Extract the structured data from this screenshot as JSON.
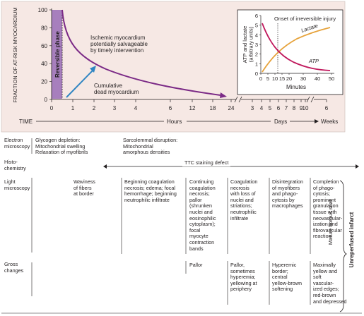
{
  "chart": {
    "ylabel": "FRACTION OF AT-RISK MYOCARDIUM",
    "yticks": [
      "100",
      "80",
      "60",
      "40",
      "20",
      "0"
    ],
    "xticks_hours": [
      "0",
      "1",
      "2",
      "3",
      "4",
      "6",
      "12",
      "18",
      "24"
    ],
    "xticks_days": [
      "3",
      "4",
      "5",
      "6",
      "7",
      "8",
      "9",
      "10"
    ],
    "xtick_weeks": "6",
    "time_label": "TIME",
    "hours_label": "Hours",
    "days_label": "Days",
    "weeks_label": "Weeks",
    "reversible_phase": "Reversible phase",
    "ischemic_label": "Ischemic myocardium\npotentially salvageable\nby timely intervention",
    "dead_label": "Cumulative\ndead myocardium",
    "colors": {
      "background": "#f6e8e4",
      "reversible": "#a77fbd",
      "ischemic_curve": "#7b2a86",
      "dead_arrow": "#2f85c2",
      "atp": "#c0185c",
      "lactate": "#e6a23a"
    }
  },
  "inset": {
    "title": "Onset of irreversible injury",
    "ylabel": "ATP and lactate\n(arbitrary units)",
    "xlabel": "Minutes",
    "yticks": [
      "6",
      "5",
      "4",
      "3",
      "2",
      "1",
      "0"
    ],
    "xticks": [
      "0",
      "5",
      "10",
      "15",
      "20",
      "30",
      "40",
      "50"
    ],
    "lactate_label": "Lactate",
    "atp_label": "ATP"
  },
  "timeline": {
    "rows": {
      "em": "Electron\nmicroscopy",
      "histo": "Histo-\nchemistry",
      "lm": "Light\nmicroscopy",
      "gross": "Gross\nchanges"
    },
    "em_glycogen": "Glycogen depletion:\n  Mitochondrial swelling\n  Relaxation of myofibrils",
    "em_sarcolemmal": "Sarcolemmal disruption:\n  Mitochondrial\n  amorphous densities",
    "ttc": "TTC staining defect",
    "lm_cells": [
      "Waviness\nof fibers\nat border",
      "Beginning coagulation\nnecrosis; edema; focal\nhemorrhage; beginning\nneutrophilic infiltrate",
      "Continuing\ncoagulation\nnecrosis;\npallor\n(shrunken\nnuclei and\neosinophilic\ncytoplasm);\nfocal\nmyocyte\ncontraction\nbands",
      "Coagulation\nnecrosis\nwith loss of\nnuclei and\nstriations;\nneutrophilic\ninfiltrate",
      "Disintegration\nof myofibers\nand phago-\ncytosis by\nmacrophages",
      "Completion\nof phago-\ncytosis;\nprominent\ngranulation\ntissue with\nneovascular-\nization and\nfibrovascular\nreaction"
    ],
    "gross_cells": [
      "Pallor",
      "Pallor,\nsometimes\nhyperemia;\nyellowing at\nperiphery",
      "Hyperemic\nborder;\ncentral\nyellow-brown\nsoftening",
      "Maximally\nyellow and\nsoft\nvascular-\nized edges;\nred-brown\nand depressed"
    ],
    "scar": "Mature fibrous scar",
    "unreperfused": "Unreperfused infarct"
  }
}
